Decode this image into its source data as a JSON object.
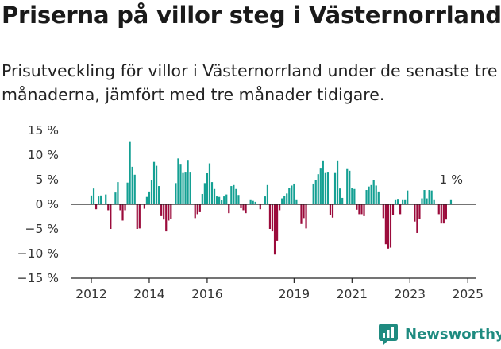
{
  "header": {
    "title": "Priserna på villor steg i Västernorrland",
    "subtitle": "Prisutveckling för villor i Västernorrland under de senaste tre månaderna, jämfört med tre månader tidigare."
  },
  "brand": {
    "name": "Newsworthy",
    "logo_icon": "newsworthy-chart-icon",
    "color": "#1f8b80"
  },
  "colors": {
    "positive": "#14a093",
    "negative": "#9b0b3b",
    "text": "#1a1a1a",
    "axis": "#222222"
  },
  "chart_data": {
    "type": "bar",
    "title": "Priserna på villor steg i Västernorrland",
    "subtitle": "Prisutveckling för villor i Västernorrland under de senaste tre månaderna, jämfört med tre månader tidigare.",
    "xlabel": "",
    "ylabel": "",
    "ylim": [
      -15,
      15
    ],
    "yticks": [
      15,
      10,
      5,
      0,
      -5,
      -10,
      -15
    ],
    "ytick_labels": [
      "15 %",
      "10 %",
      "5 %",
      "0 %",
      "−5 %",
      "−10 %",
      "−15 %"
    ],
    "x_start": "2012-01",
    "xticks": [
      "2012",
      "2014",
      "2016",
      "2019",
      "2021",
      "2023",
      "2025"
    ],
    "grid": false,
    "annotation": "1 %",
    "series": [
      {
        "values": [
          1.8,
          3.2,
          -1.0,
          1.6,
          1.8,
          0,
          2.0,
          -1.2,
          -5.0,
          0,
          2.4,
          4.5,
          -1.2,
          -3.3,
          -1.2,
          4.4,
          12.8,
          7.6,
          6.0,
          -5.0,
          -4.9,
          0,
          -0.9,
          1.5,
          2.6,
          5.0,
          8.6,
          7.8,
          3.7,
          -2.4,
          -3.1,
          -5.5,
          -3.3,
          -2.9,
          0,
          4.3,
          9.3,
          8.2,
          6.5,
          6.6,
          9.0,
          6.6,
          0,
          -2.8,
          -2.0,
          -1.6,
          2.1,
          4.3,
          6.3,
          8.3,
          4.5,
          3.1,
          1.6,
          1.5,
          0.9,
          1.6,
          2.0,
          -1.8,
          3.7,
          3.9,
          3.1,
          1.9,
          -0.8,
          -1.2,
          -1.8,
          0,
          1.0,
          0.7,
          0.5,
          0,
          -1.0,
          0,
          1.6,
          3.9,
          -5.0,
          -5.5,
          -10.2,
          -7.4,
          -1.2,
          1.2,
          1.7,
          2.2,
          3.3,
          3.8,
          4.2,
          1.0,
          0,
          -4.0,
          -2.8,
          -4.9,
          0,
          0,
          4.2,
          5.0,
          6.1,
          7.4,
          8.9,
          6.5,
          6.6,
          -2.1,
          -2.7,
          6.5,
          8.9,
          3.2,
          1.3,
          0,
          7.3,
          6.8,
          3.3,
          3.1,
          -1.1,
          -2.0,
          -2.0,
          -2.4,
          2.9,
          3.6,
          3.9,
          4.9,
          3.8,
          2.6,
          0,
          -2.8,
          -8.1,
          -9.0,
          -8.8,
          -2.1,
          1.0,
          1.1,
          -2.0,
          1.0,
          1.0,
          2.8,
          0,
          0,
          -3.5,
          -5.8,
          -3.0,
          1.2,
          2.9,
          1.2,
          2.9,
          2.8,
          1.0,
          0,
          -2.0,
          -3.9,
          -3.9,
          -3.1,
          0,
          1.0
        ]
      }
    ]
  }
}
